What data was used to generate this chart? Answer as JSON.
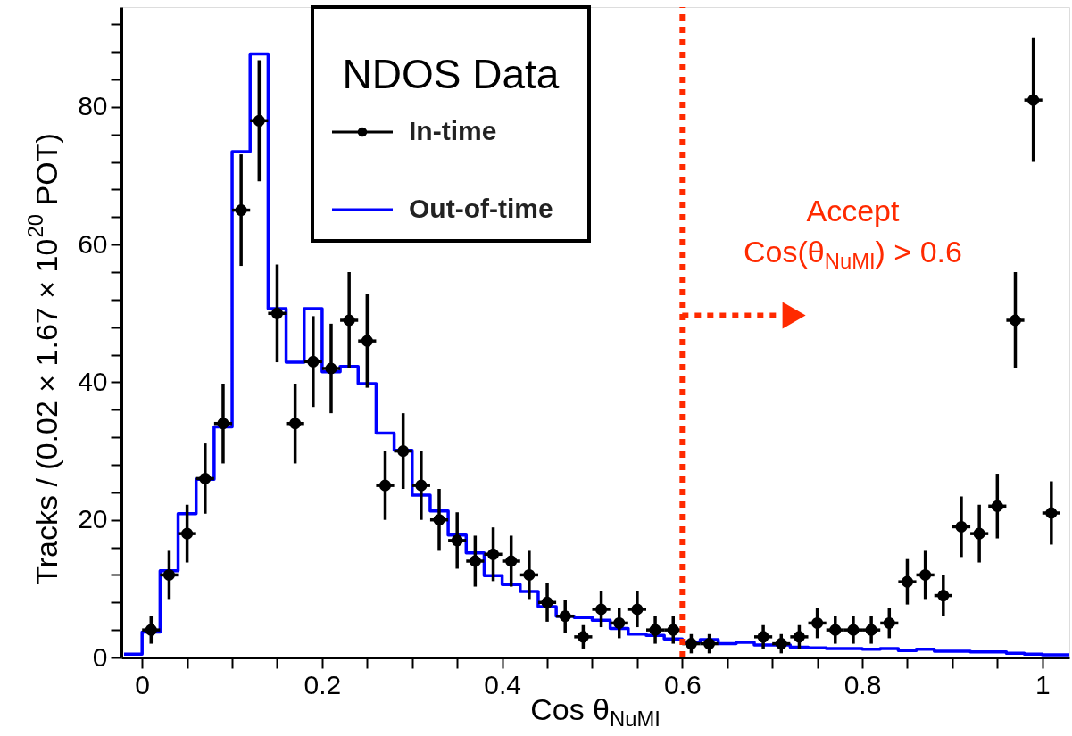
{
  "chart_data": {
    "type": "scatter",
    "xlabel": "Cos θ$_{NuMI}$",
    "ylabel": "Tracks / (0.02 × 1.67 × 10$^{20}$ POT)",
    "legend_title": "NDOS Data",
    "legend": "top",
    "grid": false,
    "xlim": [
      -0.023,
      1.03
    ],
    "ylim": [
      0,
      94.5
    ],
    "xticks": [
      0,
      {
        "value": 0.05,
        "label": null
      },
      {
        "value": 0.1,
        "label": null
      },
      {
        "value": 0.15,
        "label": null
      },
      0.2,
      {
        "value": 0.25,
        "label": null
      },
      {
        "value": 0.3,
        "label": null
      },
      {
        "value": 0.35,
        "label": null
      },
      0.4,
      {
        "value": 0.45,
        "label": null
      },
      {
        "value": 0.5,
        "label": null
      },
      {
        "value": 0.55,
        "label": null
      },
      0.6,
      {
        "value": 0.65,
        "label": null
      },
      {
        "value": 0.7,
        "label": null
      },
      {
        "value": 0.75,
        "label": null
      },
      0.8,
      {
        "value": 0.85,
        "label": null
      },
      {
        "value": 0.9,
        "label": null
      },
      {
        "value": 0.95,
        "label": null
      },
      1
    ],
    "yticks": [
      0,
      {
        "value": 4,
        "label": null
      },
      {
        "value": 8,
        "label": null
      },
      {
        "value": 12,
        "label": null
      },
      {
        "value": 16,
        "label": null
      },
      20,
      {
        "value": 24,
        "label": null
      },
      {
        "value": 28,
        "label": null
      },
      {
        "value": 32,
        "label": null
      },
      {
        "value": 36,
        "label": null
      },
      40,
      {
        "value": 44,
        "label": null
      },
      {
        "value": 48,
        "label": null
      },
      {
        "value": 52,
        "label": null
      },
      {
        "value": 56,
        "label": null
      },
      60,
      {
        "value": 64,
        "label": null
      },
      {
        "value": 68,
        "label": null
      },
      {
        "value": 72,
        "label": null
      },
      {
        "value": 76,
        "label": null
      },
      80,
      {
        "value": 84,
        "label": null
      },
      {
        "value": 88,
        "label": null
      },
      {
        "value": 92,
        "label": null
      }
    ],
    "ref_lines": [
      {
        "axis": "x",
        "value": 0.6,
        "label": "Accept\nCos(θ$_{NuMI}$) > 0.6",
        "color": "#ff2a00",
        "line_style": "dotted"
      }
    ],
    "series": [
      {
        "name": "In-time",
        "color": "#000000",
        "marker": "circle",
        "x": [
          0.01,
          0.03,
          0.05,
          0.07,
          0.09,
          0.11,
          0.13,
          0.15,
          0.17,
          0.19,
          0.21,
          0.23,
          0.25,
          0.27,
          0.29,
          0.31,
          0.33,
          0.35,
          0.37,
          0.39,
          0.41,
          0.43,
          0.45,
          0.47,
          0.49,
          0.51,
          0.53,
          0.55,
          0.57,
          0.59,
          0.61,
          0.63,
          0.69,
          0.71,
          0.73,
          0.75,
          0.77,
          0.79,
          0.81,
          0.83,
          0.85,
          0.87,
          0.89,
          0.91,
          0.93,
          0.95,
          0.97,
          0.99,
          1.01
        ],
        "values": [
          4,
          12,
          18,
          26,
          34,
          65,
          78,
          50,
          34,
          43,
          42,
          49,
          46,
          25,
          30,
          25,
          20,
          17,
          14,
          15,
          14,
          12,
          8,
          6,
          3,
          7,
          5,
          7,
          4,
          4,
          2,
          2,
          3,
          2,
          3,
          5,
          4,
          4,
          4,
          5,
          11,
          12,
          9,
          19,
          18,
          22,
          49,
          81,
          21
        ],
        "errors": [
          2,
          3.5,
          4.2,
          5.1,
          5.8,
          8.1,
          8.8,
          7.1,
          5.8,
          6.6,
          6.5,
          7,
          6.8,
          5,
          5.5,
          5,
          4.5,
          4.1,
          3.7,
          3.9,
          3.7,
          3.5,
          2.8,
          2.4,
          1.7,
          2.6,
          2.2,
          2.6,
          2,
          2,
          1.4,
          1.4,
          1.7,
          1.4,
          1.7,
          2.2,
          2,
          2,
          2,
          2.2,
          3.3,
          3.5,
          3,
          4.4,
          4.2,
          4.7,
          7,
          9,
          4.6
        ],
        "xerrors": [
          0.01,
          0.01,
          0.01,
          0.01,
          0.01,
          0.01,
          0.01,
          0.01,
          0.01,
          0.01,
          0.01,
          0.01,
          0.01,
          0.01,
          0.01,
          0.01,
          0.01,
          0.01,
          0.01,
          0.01,
          0.01,
          0.01,
          0.01,
          0.01,
          0.01,
          0.01,
          0.01,
          0.01,
          0.01,
          0.01,
          0.01,
          0.01,
          0.01,
          0.01,
          0.01,
          0.01,
          0.01,
          0.01,
          0.01,
          0.01,
          0.01,
          0.01,
          0.01,
          0.01,
          0.01,
          0.01,
          0.01,
          0.01,
          0.01
        ]
      },
      {
        "name": "Out-of-time",
        "type": "step",
        "color": "#0000ff",
        "x": [
          -0.02,
          0,
          0.02,
          0.04,
          0.06,
          0.08,
          0.1,
          0.12,
          0.14,
          0.16,
          0.18,
          0.2,
          0.22,
          0.24,
          0.26,
          0.28,
          0.3,
          0.32,
          0.34,
          0.36,
          0.38,
          0.4,
          0.42,
          0.44,
          0.46,
          0.48,
          0.5,
          0.52,
          0.54,
          0.56,
          0.58,
          0.6,
          0.62,
          0.64,
          0.66,
          0.68,
          0.7,
          0.72,
          0.74,
          0.76,
          0.78,
          0.8,
          0.82,
          0.84,
          0.86,
          0.88,
          0.9,
          0.92,
          0.94,
          0.96,
          0.98,
          1.0,
          1.02,
          1.03
        ],
        "values": [
          0.5,
          3.7,
          12.6,
          20.9,
          25.9,
          33.5,
          73.5,
          87.7,
          50.7,
          42.9,
          50.7,
          41.5,
          42.3,
          39.8,
          32.6,
          30.1,
          23.6,
          21.3,
          17.8,
          15.2,
          11.9,
          10.6,
          9.6,
          7.4,
          6.0,
          5.8,
          5.4,
          4.2,
          3.4,
          3.2,
          2.7,
          2.2,
          2.6,
          2.0,
          2.2,
          1.8,
          1.8,
          1.5,
          1.4,
          1.3,
          1.3,
          1.2,
          1.3,
          1.0,
          1.2,
          0.9,
          0.9,
          0.8,
          0.8,
          0.6,
          0.5,
          0.4,
          0.4,
          0.4
        ]
      }
    ]
  }
}
